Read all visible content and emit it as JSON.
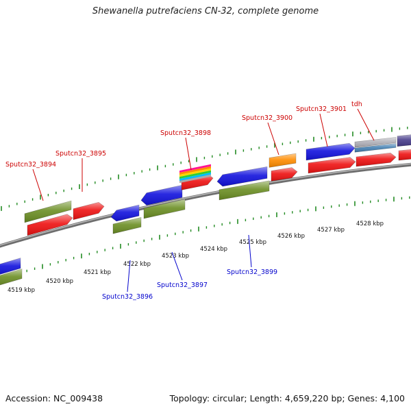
{
  "title": "Shewanella putrefaciens CN-32, complete genome",
  "footer": {
    "accession": "Accession: NC_009438",
    "stats": "Topology: circular; Length: 4,659,220 bp; Genes: 4,100"
  },
  "colors": {
    "backbone": "#8c8c8c",
    "ticks": "#228b22",
    "forward_label": "#cc0000",
    "reverse_label": "#0000cc",
    "cds_red": "#ee1111",
    "cds_blue": "#1111dd",
    "cds_olive": "#6b8e23",
    "cds_orange": "#ff8c00",
    "cds_grey": "#b0b0b8",
    "cds_steel": "#4682b4",
    "cds_slate": "#483d8b"
  },
  "scale_labels": [
    "4519 kbp",
    "4520 kbp",
    "4521 kbp",
    "4522 kbp",
    "4523 kbp",
    "4524 kbp",
    "4525 kbp",
    "4526 kbp",
    "4527 kbp",
    "4528 kbp"
  ],
  "labels": {
    "forward": [
      "Sputcn32_3894",
      "Sputcn32_3895",
      "Sputcn32_3898",
      "Sputcn32_3900",
      "Sputcn32_3901",
      "tdh"
    ],
    "reverse": [
      "Sputcn32_3896",
      "Sputcn32_3897",
      "Sputcn32_3899"
    ]
  }
}
